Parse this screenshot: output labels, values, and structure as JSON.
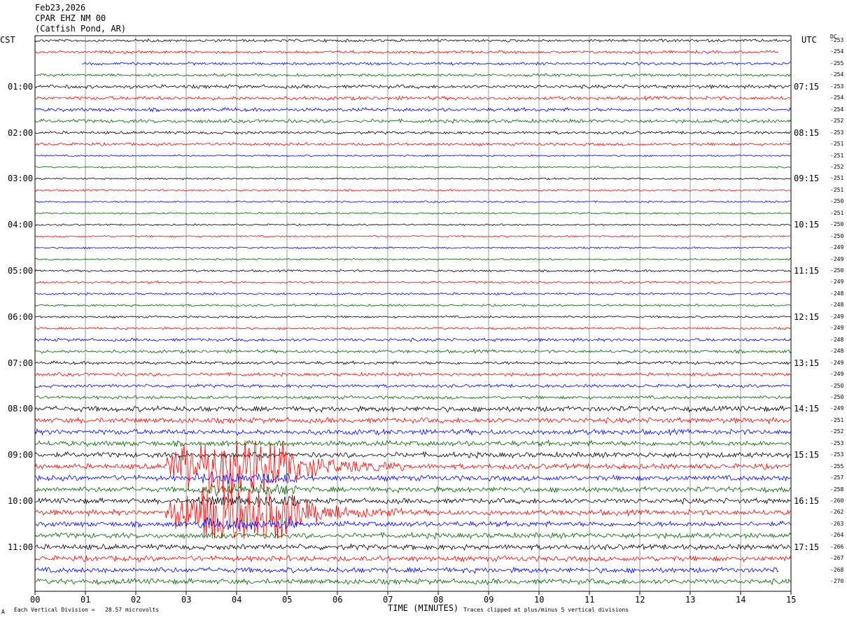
{
  "header": {
    "date": "Feb23,2026",
    "station": "CPAR EHZ NM 00",
    "location": "(Catfish Pond, AR)"
  },
  "left_tz": "CST",
  "right_tz": "UTC",
  "dc_label": "DC",
  "footer": {
    "vertical_division": "Each Vertical Division =   28.57 microvolts",
    "xlabel": "TIME (MINUTES)",
    "clip_note": "Traces clipped at plus/minus 5 vertical divisions",
    "corner_mark": "A"
  },
  "colors": {
    "trace_cycle": [
      "#000000",
      "#ff0000",
      "#0000ff",
      "#006400"
    ],
    "grid": "#808080"
  },
  "chart_data": {
    "type": "line",
    "title": "CPAR EHZ NM 00",
    "xlabel": "TIME (MINUTES)",
    "xlim": [
      0,
      15
    ],
    "x_ticks": [
      "00",
      "01",
      "02",
      "03",
      "04",
      "05",
      "06",
      "07",
      "08",
      "09",
      "10",
      "11",
      "12",
      "13",
      "14",
      "15"
    ],
    "left_hour_labels": [
      "01:00",
      "02:00",
      "03:00",
      "04:00",
      "05:00",
      "06:00",
      "07:00",
      "08:00",
      "09:00",
      "10:00",
      "11:00"
    ],
    "right_hour_labels": [
      "07:15",
      "08:15",
      "09:15",
      "10:15",
      "11:15",
      "12:15",
      "13:15",
      "14:15",
      "15:15",
      "16:15",
      "17:15"
    ],
    "dc_offsets": [
      -253,
      -254,
      -255,
      -254,
      -253,
      -254,
      -254,
      -252,
      -253,
      -251,
      -251,
      -252,
      -251,
      -251,
      -250,
      -251,
      -250,
      -250,
      -249,
      -249,
      -250,
      -249,
      -248,
      -248,
      -249,
      -249,
      -248,
      -248,
      -249,
      -249,
      -250,
      -250,
      -249,
      -251,
      -252,
      -253,
      -253,
      -255,
      -257,
      -258,
      -260,
      -262,
      -263,
      -264,
      -266,
      -267,
      -268,
      -270
    ],
    "trace_count": 48,
    "minutes_per_trace": 15,
    "earthquake_event": {
      "trace_start": 37,
      "trace_end": 42,
      "start_minute": 2.6,
      "end_minute": 7.3,
      "color": "red",
      "note": "clipped"
    }
  }
}
